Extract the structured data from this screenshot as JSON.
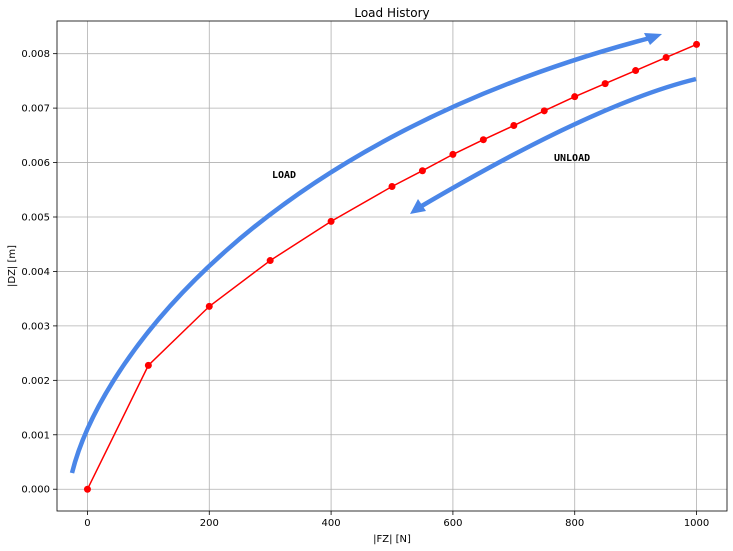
{
  "chart_data": {
    "type": "line",
    "title": "Load History",
    "x_label": "|FZ| [N]",
    "y_label": "|DZ| [m]",
    "x": [
      0,
      100,
      200,
      300,
      400,
      500,
      550,
      600,
      650,
      700,
      750,
      800,
      850,
      900,
      950,
      1000
    ],
    "values": [
      0,
      0.002275,
      0.003358,
      0.0042,
      0.00492,
      0.00556,
      0.00585,
      0.00615,
      0.00642,
      0.00668,
      0.00695,
      0.00721,
      0.00745,
      0.00769,
      0.00793,
      0.00817
    ],
    "color": "#ff0000",
    "xlim": [
      -50,
      1050
    ],
    "ylim": [
      -0.0004,
      0.0086
    ],
    "xticks": [
      0,
      200,
      400,
      600,
      800,
      1000
    ],
    "yticks": [
      {
        "value": 0,
        "label": "0.000"
      },
      {
        "value": 0.001,
        "label": "0.001"
      },
      {
        "value": 0.002,
        "label": "0.002"
      },
      {
        "value": 0.003,
        "label": "0.003"
      },
      {
        "value": 0.004,
        "label": "0.004"
      },
      {
        "value": 0.005,
        "label": "0.005"
      },
      {
        "value": 0.006,
        "label": "0.006"
      },
      {
        "value": 0.007,
        "label": "0.007"
      },
      {
        "value": 0.008,
        "label": "0.008"
      }
    ],
    "grid": true,
    "annotations": [
      "LOAD",
      "UNLOAD"
    ]
  }
}
